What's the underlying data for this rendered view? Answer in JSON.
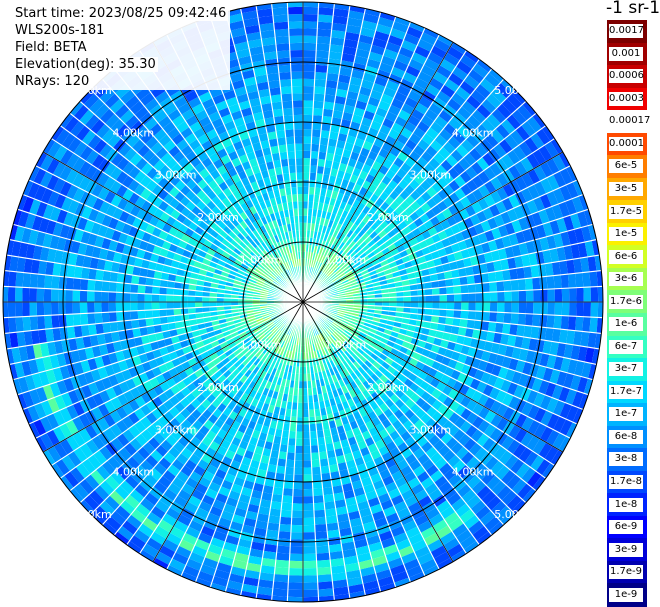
{
  "info": {
    "start_time": "Start time: 2023/08/25 09:42:46",
    "device": "WLS200s-181",
    "field": "Field: BETA",
    "elevation": "Elevation(deg): 35.30",
    "nrays": "NRays: 120"
  },
  "colorbar": {
    "unit_title": "-1 sr-1",
    "labels": [
      "0.0017",
      "0.001",
      "0.0006",
      "0.0003",
      "0.00017",
      "0.0001",
      "6e-5",
      "3e-5",
      "1.7e-5",
      "1e-5",
      "6e-6",
      "3e-6",
      "1.7e-6",
      "1e-6",
      "6e-7",
      "3e-7",
      "1.7e-7",
      "1e-7",
      "6e-8",
      "3e-8",
      "1.7e-8",
      "1e-8",
      "6e-9",
      "3e-9",
      "1.7e-9",
      "1e-9"
    ],
    "colors": [
      "#7d0000",
      "#a00000",
      "#c80000",
      "#f00000",
      "#ffffff",
      "#ff4a00",
      "#ff7e00",
      "#ffa800",
      "#ffd000",
      "#fbf000",
      "#d2ff24",
      "#a6ff50",
      "#7eff78",
      "#58ffa0",
      "#34ffc3",
      "#12f2e4",
      "#00d8ff",
      "#00b4ff",
      "#0090ff",
      "#006cff",
      "#0048ff",
      "#0024ff",
      "#0000ff",
      "#0000d8",
      "#0000b0",
      "#000088"
    ]
  },
  "chart_data": {
    "type": "ppi_polar",
    "field": "BETA",
    "elevation_deg": 35.3,
    "n_rays": 120,
    "max_range_km": 5.0,
    "range_rings_km": [
      1,
      2,
      3,
      4,
      5
    ],
    "range_labels": {
      "ring_1": "1.00km",
      "ring_2": "2.00km",
      "ring_3": "3.00km",
      "ring_4": "4.00km",
      "ring_5": "5.00km"
    },
    "azimuth_gridlines_deg": [
      0,
      30,
      60,
      90,
      120,
      150,
      180,
      210,
      240,
      270,
      300,
      330
    ],
    "description_levels": {
      "inner_near_range": "1.7e-7",
      "middle_range": "6e-8",
      "outer_range": "1.7e-8",
      "enhanced_arc_south": "1.7e-6"
    }
  }
}
